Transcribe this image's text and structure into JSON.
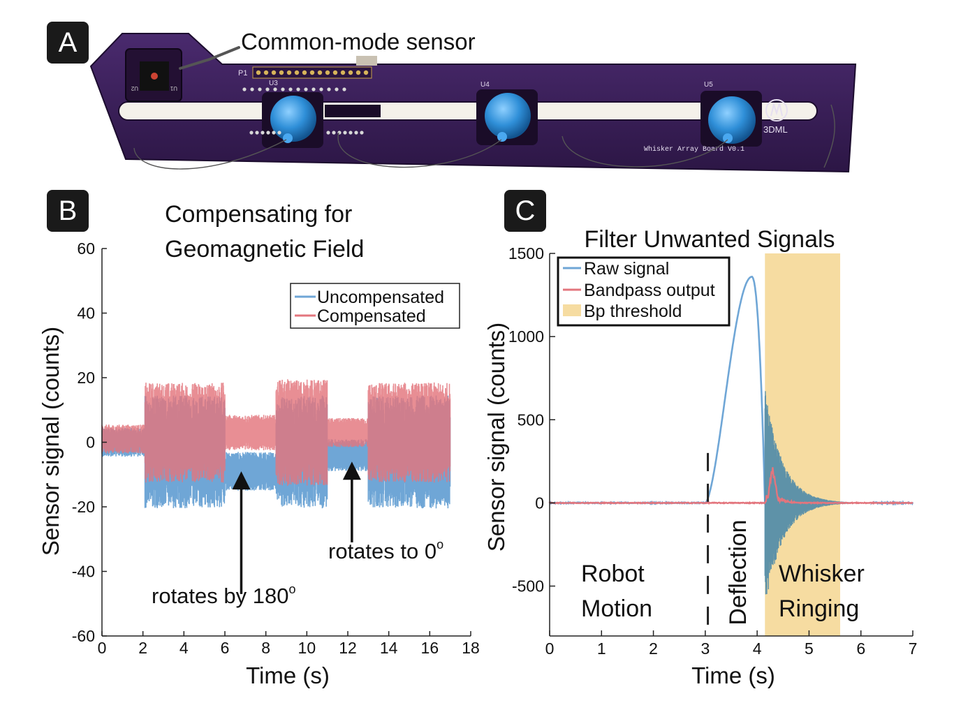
{
  "panels": {
    "a": {
      "letter": "A",
      "callout": "Common-mode sensor",
      "board": {
        "header_label": "P1",
        "sensor_labels": [
          "U3",
          "U4",
          "U5"
        ],
        "left_labels": [
          "U2",
          "U1"
        ],
        "logo_text": "3DML",
        "board_text": "Whisker Array Board V0.1"
      }
    },
    "b": {
      "letter": "B"
    },
    "c": {
      "letter": "C"
    }
  },
  "colors": {
    "blue": "#6fa6d6",
    "red": "#e3757d",
    "overlap": "#a5556a",
    "threshold": "#f6dca1",
    "board": "#3b1f5a",
    "cap": "#2f8fd8"
  },
  "chart_data": [
    {
      "type": "line",
      "id": "b",
      "title": "Compensating for Geomagnetic Field",
      "title_lines": [
        "Compensating for",
        "Geomagnetic Field"
      ],
      "xlabel": "Time (s)",
      "ylabel": "Sensor signal (counts)",
      "xlim": [
        0,
        18
      ],
      "ylim": [
        -60,
        60
      ],
      "xticks": [
        0,
        2,
        4,
        6,
        8,
        10,
        12,
        14,
        16,
        18
      ],
      "yticks": [
        60,
        40,
        20,
        0,
        -20,
        -40,
        -60
      ],
      "legend_position": "top-right",
      "series": [
        {
          "name": "Uncompensated",
          "color": "#6fa6d6",
          "segments": [
            {
              "t": [
                0,
                2.1
              ],
              "center": 0,
              "half_width": 4.5
            },
            {
              "t": [
                2.1,
                6.0
              ],
              "center": -3,
              "half_width": 17.5
            },
            {
              "t": [
                6.0,
                8.5
              ],
              "center": -9,
              "half_width": 6
            },
            {
              "t": [
                8.5,
                11.0
              ],
              "center": -3,
              "half_width": 17.5
            },
            {
              "t": [
                11.0,
                13.0
              ],
              "center": -4,
              "half_width": 5
            },
            {
              "t": [
                13.0,
                17.0
              ],
              "center": -3,
              "half_width": 17.5
            }
          ]
        },
        {
          "name": "Compensated",
          "color": "#e3757d",
          "segments": [
            {
              "t": [
                0,
                2.1
              ],
              "center": 1,
              "half_width": 4.5
            },
            {
              "t": [
                2.1,
                6.0
              ],
              "center": 3,
              "half_width": 15.5
            },
            {
              "t": [
                6.0,
                8.5
              ],
              "center": 3,
              "half_width": 5.5
            },
            {
              "t": [
                8.5,
                11.0
              ],
              "center": 3,
              "half_width": 16.5
            },
            {
              "t": [
                11.0,
                13.0
              ],
              "center": 3,
              "half_width": 4.5
            },
            {
              "t": [
                13.0,
                17.0
              ],
              "center": 3,
              "half_width": 15.5
            }
          ]
        }
      ],
      "annotations": [
        {
          "text": "rotates by 180",
          "sup": "o",
          "arrow_tip": [
            6.8,
            -9
          ],
          "arrow_tail": [
            6.8,
            -47
          ]
        },
        {
          "text": "rotates to 0",
          "sup": "o",
          "arrow_tip": [
            12.2,
            -6
          ],
          "arrow_tail": [
            12.2,
            -31
          ]
        }
      ]
    },
    {
      "type": "line",
      "id": "c",
      "title": "Filter Unwanted Signals",
      "xlabel": "Time (s)",
      "ylabel": "Sensor signal (counts)",
      "xlim": [
        0,
        7
      ],
      "ylim": [
        -800,
        1500
      ],
      "xticks": [
        0,
        1,
        2,
        3,
        4,
        5,
        6,
        7
      ],
      "yticks": [
        1500,
        1000,
        500,
        0,
        -500
      ],
      "legend_position": "top-left",
      "series": [
        {
          "name": "Raw signal",
          "color": "#6fa6d6",
          "rise_start": 3.0,
          "peak": [
            3.9,
            1360
          ],
          "drop": 4.15,
          "decay_end": 6.2,
          "ring_amplitude": [
            700,
            -650
          ]
        },
        {
          "name": "Bandpass output",
          "color": "#e3757d",
          "bump_peak": [
            4.3,
            200
          ],
          "bump_range": [
            4.15,
            4.8
          ]
        },
        {
          "name": "Bp threshold",
          "color": "#f6dca1",
          "x_range": [
            4.15,
            5.6
          ]
        }
      ],
      "vline_dashed": 3.05,
      "region_labels": [
        {
          "lines": [
            "Robot",
            "Motion"
          ]
        },
        {
          "lines": [
            "Deflection"
          ],
          "rotated": true
        },
        {
          "lines": [
            "Whisker",
            "Ringing"
          ]
        }
      ]
    }
  ]
}
